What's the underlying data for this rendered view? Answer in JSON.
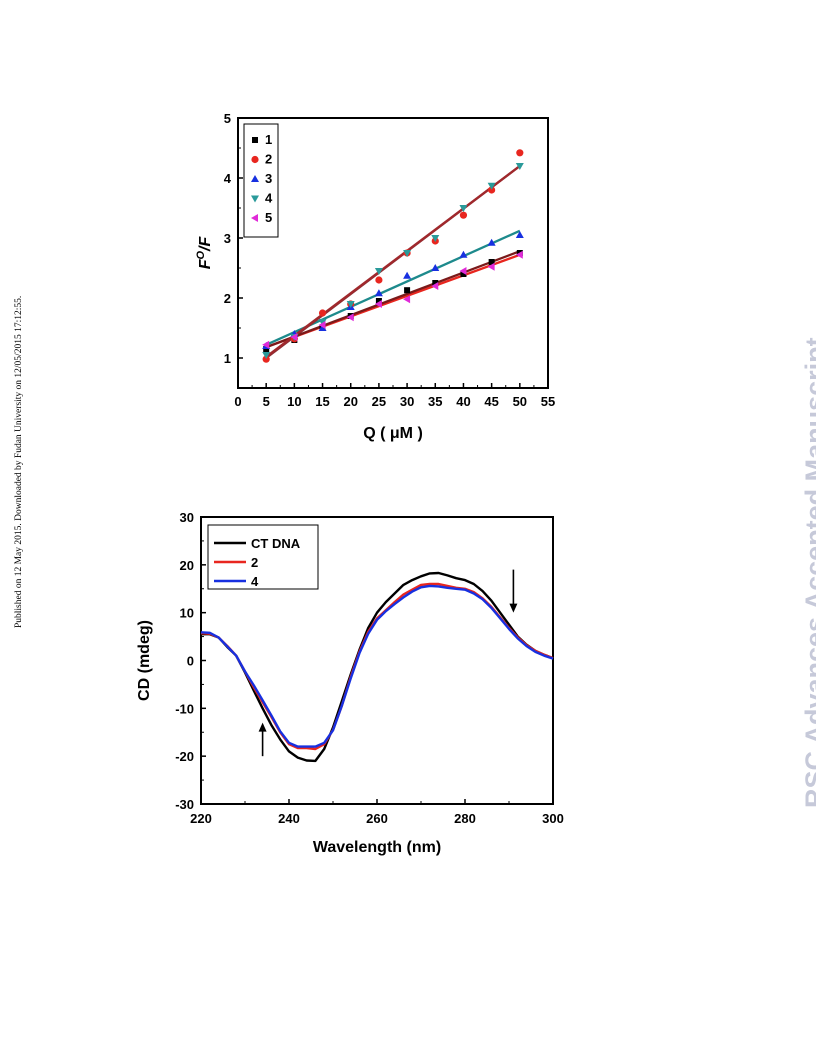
{
  "page": {
    "side_note": "Published on 12 May 2015. Downloaded by Fudan University on 12/05/2015 17:12:55.",
    "watermark": "RSC Advances Accepted Manuscript"
  },
  "chart_data": [
    {
      "type": "scatter",
      "xlabel": "Q ( μM )",
      "ylabel": "F",
      "ylabel_superscript": "O",
      "ylabel_suffix": "/F",
      "xlim": [
        0,
        55
      ],
      "ylim": [
        0.5,
        5
      ],
      "xticks": [
        "0",
        "5",
        "10",
        "15",
        "20",
        "25",
        "30",
        "35",
        "40",
        "45",
        "50",
        "55"
      ],
      "yticks": [
        "1",
        "2",
        "3",
        "4",
        "5"
      ],
      "legend_position": "top-left",
      "series": [
        {
          "name": "1",
          "marker": "square",
          "color": "#000000",
          "fit_color": "#7a1a1a",
          "x": [
            5,
            10,
            15,
            20,
            25,
            30,
            35,
            40,
            45,
            50
          ],
          "y": [
            1.15,
            1.3,
            1.5,
            1.7,
            1.95,
            2.13,
            2.25,
            2.4,
            2.6,
            2.75
          ],
          "fit": [
            1.18,
            2.78
          ]
        },
        {
          "name": "2",
          "marker": "circle",
          "color": "#e8261f",
          "fit_color": "#8a2e34",
          "x": [
            5,
            10,
            15,
            20,
            25,
            30,
            35,
            40,
            45,
            50
          ],
          "y": [
            0.98,
            1.32,
            1.75,
            1.9,
            2.3,
            2.75,
            2.95,
            3.38,
            3.8,
            4.42
          ],
          "fit": [
            1.0,
            4.2
          ]
        },
        {
          "name": "3",
          "marker": "triangle-up",
          "color": "#1730e0",
          "fit_color": "#1d8a8c",
          "x": [
            5,
            10,
            15,
            20,
            25,
            30,
            35,
            40,
            45,
            50
          ],
          "y": [
            1.2,
            1.4,
            1.5,
            1.85,
            2.08,
            2.37,
            2.5,
            2.72,
            2.92,
            3.05
          ],
          "fit": [
            1.22,
            3.12
          ]
        },
        {
          "name": "4",
          "marker": "triangle-down",
          "color": "#2a9a9a",
          "fit_color": "#a0282c",
          "x": [
            5,
            10,
            15,
            20,
            25,
            30,
            35,
            40,
            45,
            50
          ],
          "y": [
            1.05,
            1.35,
            1.6,
            1.9,
            2.45,
            2.75,
            3.0,
            3.5,
            3.87,
            4.2
          ],
          "fit": [
            1.02,
            4.2
          ]
        },
        {
          "name": "5",
          "marker": "triangle-left",
          "color": "#e02ad8",
          "fit_color": "#e8261f",
          "x": [
            5,
            10,
            15,
            20,
            25,
            30,
            35,
            40,
            45,
            50
          ],
          "y": [
            1.22,
            1.35,
            1.55,
            1.68,
            1.9,
            1.98,
            2.2,
            2.45,
            2.52,
            2.72
          ],
          "fit": [
            1.18,
            2.72
          ]
        }
      ]
    },
    {
      "type": "line",
      "xlabel": "Wavelength (nm)",
      "ylabel": "CD (mdeg)",
      "xlim": [
        220,
        300
      ],
      "ylim": [
        -30,
        30
      ],
      "xticks": [
        "220",
        "240",
        "260",
        "280",
        "300"
      ],
      "yticks": [
        "30",
        "20",
        "10",
        "0",
        "-10",
        "-20",
        "-30"
      ],
      "legend_position": "top-left",
      "annotations": [
        {
          "type": "arrow-up",
          "x": 234,
          "y_from": -20,
          "y_to": -13
        },
        {
          "type": "arrow-down",
          "x": 291,
          "y_from": 19,
          "y_to": 10
        }
      ],
      "series": [
        {
          "name": "CT DNA",
          "color": "#000000",
          "x": [
            220,
            222,
            224,
            226,
            228,
            230,
            232,
            234,
            236,
            238,
            240,
            242,
            244,
            246,
            248,
            250,
            252,
            254,
            256,
            258,
            260,
            262,
            264,
            266,
            268,
            270,
            272,
            274,
            276,
            278,
            280,
            282,
            284,
            286,
            288,
            290,
            292,
            294,
            296,
            298,
            300
          ],
          "y": [
            5.5,
            5.5,
            4.8,
            2.8,
            1.0,
            -2.5,
            -6.3,
            -10.0,
            -13.5,
            -16.5,
            -19.0,
            -20.3,
            -20.9,
            -21.0,
            -18.5,
            -14.0,
            -8.5,
            -3.0,
            2.2,
            6.8,
            10.0,
            12.2,
            14.0,
            15.8,
            16.8,
            17.6,
            18.2,
            18.3,
            17.8,
            17.2,
            16.8,
            16.0,
            14.5,
            12.5,
            10.0,
            7.5,
            5.0,
            3.3,
            2.0,
            1.2,
            0.5
          ]
        },
        {
          "name": "2",
          "color": "#e8261f",
          "x": [
            220,
            222,
            224,
            226,
            228,
            230,
            232,
            234,
            236,
            238,
            240,
            242,
            244,
            246,
            248,
            250,
            252,
            254,
            256,
            258,
            260,
            262,
            264,
            266,
            268,
            270,
            272,
            274,
            276,
            278,
            280,
            282,
            284,
            286,
            288,
            290,
            292,
            294,
            296,
            298,
            300
          ],
          "y": [
            5.7,
            5.6,
            4.8,
            3.0,
            1.0,
            -2.3,
            -5.6,
            -8.7,
            -11.8,
            -15.0,
            -17.5,
            -18.3,
            -18.3,
            -18.5,
            -17.5,
            -14.5,
            -9.5,
            -3.5,
            1.8,
            6.0,
            8.8,
            10.5,
            12.2,
            13.8,
            14.8,
            15.8,
            16.0,
            16.0,
            15.6,
            15.2,
            15.0,
            14.3,
            13.0,
            11.2,
            9.0,
            6.8,
            4.8,
            3.2,
            2.0,
            1.2,
            0.5
          ]
        },
        {
          "name": "4",
          "color": "#1730e0",
          "x": [
            220,
            222,
            224,
            226,
            228,
            230,
            232,
            234,
            236,
            238,
            240,
            242,
            244,
            246,
            248,
            250,
            252,
            254,
            256,
            258,
            260,
            262,
            264,
            266,
            268,
            270,
            272,
            274,
            276,
            278,
            280,
            282,
            284,
            286,
            288,
            290,
            292,
            294,
            296,
            298,
            300
          ],
          "y": [
            5.9,
            5.8,
            4.8,
            2.9,
            1.0,
            -2.3,
            -5.2,
            -8.3,
            -11.5,
            -14.8,
            -17.2,
            -18.0,
            -18.0,
            -18.0,
            -17.2,
            -14.6,
            -9.5,
            -3.8,
            1.5,
            5.6,
            8.5,
            10.3,
            11.8,
            13.2,
            14.4,
            15.3,
            15.6,
            15.5,
            15.2,
            15.0,
            14.8,
            14.0,
            12.8,
            11.0,
            8.8,
            6.6,
            4.6,
            3.0,
            1.8,
            1.0,
            0.4
          ]
        }
      ]
    }
  ]
}
